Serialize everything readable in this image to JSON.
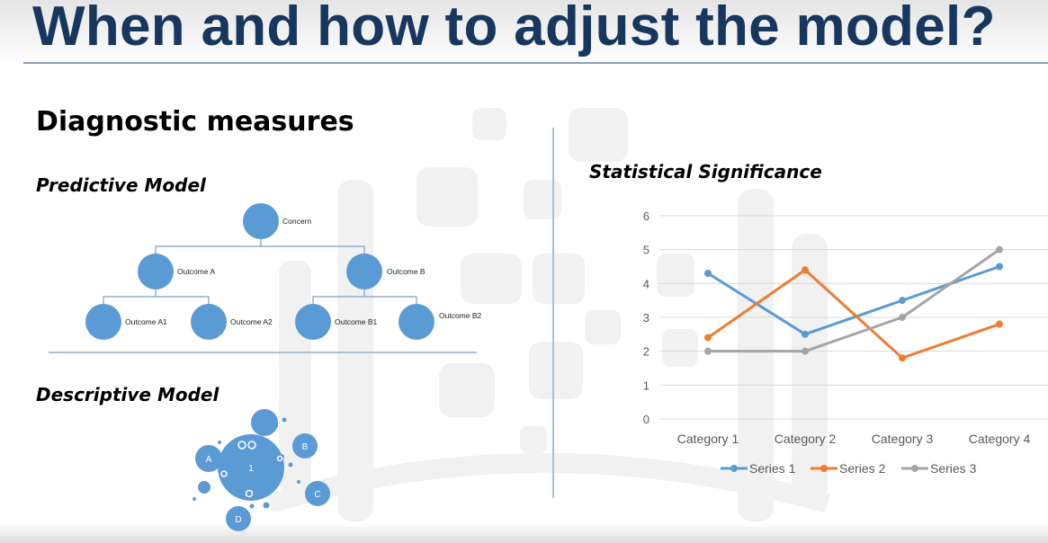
{
  "slide": {
    "title": "When and how to adjust the model?",
    "heading": "Diagnostic measures",
    "predictive_label": "Predictive Model",
    "descriptive_label": "Descriptive Model",
    "significance_label": "Statistical Significance"
  },
  "tree": {
    "root": "Concern",
    "level1": [
      "Outcome A",
      "Outcome B"
    ],
    "level2": [
      "Outcome A1",
      "Outcome A2",
      "Outcome B1",
      "Outcome B2"
    ]
  },
  "bubbles": {
    "center": "1",
    "labels": [
      "A",
      "B",
      "C",
      "D"
    ]
  },
  "colors": {
    "title": "#17375e",
    "node": "#5b9bd5",
    "series1": "#5b9bd5",
    "series2": "#ed7d31",
    "series3": "#a5a5a5"
  },
  "chart_data": {
    "type": "line",
    "categories": [
      "Category 1",
      "Category 2",
      "Category 3",
      "Category 4"
    ],
    "series": [
      {
        "name": "Series 1",
        "values": [
          4.3,
          2.5,
          3.5,
          4.5
        ]
      },
      {
        "name": "Series 2",
        "values": [
          2.4,
          4.4,
          1.8,
          2.8
        ]
      },
      {
        "name": "Series 3",
        "values": [
          2,
          2,
          3,
          5
        ]
      }
    ],
    "ylim": [
      0,
      6
    ],
    "yticks": [
      "0",
      "1",
      "2",
      "3",
      "4",
      "5",
      "6"
    ],
    "grid": true,
    "legend": "bottom"
  }
}
